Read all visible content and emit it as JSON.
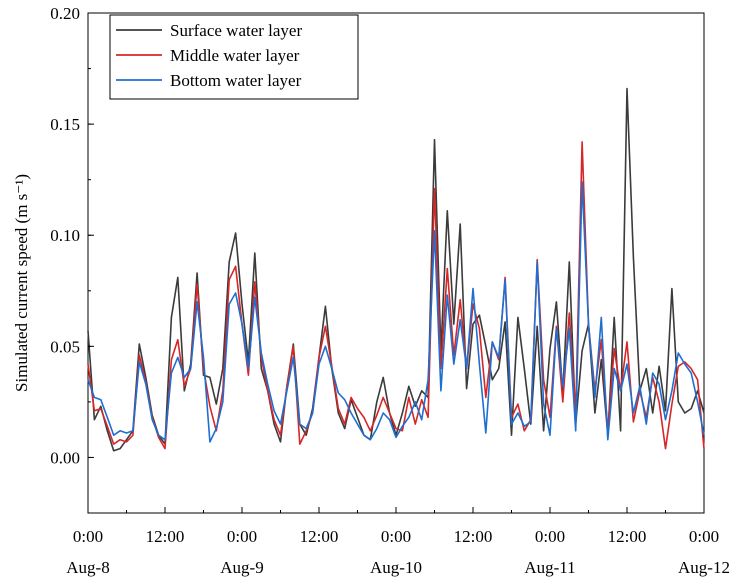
{
  "chart_data": {
    "type": "line",
    "title": "",
    "xlabel": "",
    "ylabel": "Simulated current speed (m s⁻¹)",
    "xlim": [
      0,
      96
    ],
    "ylim": [
      -0.025,
      0.2
    ],
    "yticks": [
      0.0,
      0.05,
      0.1,
      0.15,
      0.2
    ],
    "ytick_labels": [
      "0.00",
      "0.05",
      "0.10",
      "0.15",
      "0.20"
    ],
    "xticks": [
      0,
      12,
      24,
      36,
      48,
      60,
      72,
      84,
      96
    ],
    "xtick_labels": [
      "0:00",
      "12:00",
      "0:00",
      "12:00",
      "0:00",
      "12:00",
      "0:00",
      "12:00",
      "0:00"
    ],
    "xdate_labels": [
      {
        "x": 0,
        "label": "Aug-8"
      },
      {
        "x": 24,
        "label": "Aug-9"
      },
      {
        "x": 48,
        "label": "Aug-10"
      },
      {
        "x": 72,
        "label": "Aug-11"
      },
      {
        "x": 96,
        "label": "Aug-12"
      }
    ],
    "grid": false,
    "legend_position": "top-left",
    "series": [
      {
        "name": "Surface water layer",
        "color": "#3b3b3b",
        "x": [
          0,
          1,
          2,
          3,
          4,
          5,
          6,
          7,
          8,
          9,
          10,
          11,
          12,
          13,
          14,
          15,
          16,
          17,
          18,
          19,
          20,
          21,
          22,
          23,
          24,
          25,
          26,
          27,
          28,
          29,
          30,
          31,
          32,
          33,
          34,
          35,
          36,
          37,
          38,
          39,
          40,
          41,
          42,
          43,
          44,
          45,
          46,
          47,
          48,
          49,
          50,
          51,
          52,
          53,
          54,
          55,
          56,
          57,
          58,
          59,
          60,
          61,
          62,
          63,
          64,
          65,
          66,
          67,
          68,
          69,
          70,
          71,
          72,
          73,
          74,
          75,
          76,
          77,
          78,
          79,
          80,
          81,
          82,
          83,
          84,
          85,
          86,
          87,
          88,
          89,
          90,
          91,
          92,
          93,
          94,
          95,
          96
        ],
        "values": [
          0.057,
          0.017,
          0.023,
          0.012,
          0.003,
          0.004,
          0.008,
          0.012,
          0.051,
          0.036,
          0.019,
          0.01,
          0.006,
          0.063,
          0.081,
          0.03,
          0.042,
          0.083,
          0.037,
          0.036,
          0.024,
          0.04,
          0.088,
          0.101,
          0.069,
          0.043,
          0.092,
          0.04,
          0.03,
          0.015,
          0.007,
          0.032,
          0.051,
          0.015,
          0.01,
          0.022,
          0.045,
          0.068,
          0.04,
          0.02,
          0.013,
          0.026,
          0.018,
          0.01,
          0.008,
          0.025,
          0.036,
          0.02,
          0.01,
          0.02,
          0.032,
          0.023,
          0.03,
          0.027,
          0.143,
          0.048,
          0.111,
          0.06,
          0.105,
          0.031,
          0.06,
          0.064,
          0.05,
          0.035,
          0.04,
          0.061,
          0.01,
          0.063,
          0.04,
          0.015,
          0.059,
          0.012,
          0.049,
          0.07,
          0.029,
          0.088,
          0.015,
          0.048,
          0.06,
          0.02,
          0.044,
          0.01,
          0.063,
          0.012,
          0.166,
          0.09,
          0.03,
          0.04,
          0.02,
          0.041,
          0.021,
          0.076,
          0.025,
          0.02,
          0.022,
          0.03,
          0.02
        ]
      },
      {
        "name": "Middle water layer",
        "color": "#d62728",
        "x": [
          0,
          1,
          2,
          3,
          4,
          5,
          6,
          7,
          8,
          9,
          10,
          11,
          12,
          13,
          14,
          15,
          16,
          17,
          18,
          19,
          20,
          21,
          22,
          23,
          24,
          25,
          26,
          27,
          28,
          29,
          30,
          31,
          32,
          33,
          34,
          35,
          36,
          37,
          38,
          39,
          40,
          41,
          42,
          43,
          44,
          45,
          46,
          47,
          48,
          49,
          50,
          51,
          52,
          53,
          54,
          55,
          56,
          57,
          58,
          59,
          60,
          61,
          62,
          63,
          64,
          65,
          66,
          67,
          68,
          69,
          70,
          71,
          72,
          73,
          74,
          75,
          76,
          77,
          78,
          79,
          80,
          81,
          82,
          83,
          84,
          85,
          86,
          87,
          88,
          89,
          90,
          91,
          92,
          93,
          94,
          95,
          96
        ],
        "values": [
          0.042,
          0.021,
          0.022,
          0.014,
          0.006,
          0.008,
          0.007,
          0.01,
          0.046,
          0.034,
          0.018,
          0.009,
          0.004,
          0.044,
          0.053,
          0.032,
          0.04,
          0.078,
          0.04,
          0.023,
          0.012,
          0.03,
          0.08,
          0.086,
          0.06,
          0.037,
          0.079,
          0.045,
          0.03,
          0.017,
          0.01,
          0.032,
          0.05,
          0.006,
          0.012,
          0.02,
          0.045,
          0.059,
          0.041,
          0.022,
          0.015,
          0.027,
          0.022,
          0.018,
          0.012,
          0.019,
          0.027,
          0.02,
          0.013,
          0.012,
          0.027,
          0.015,
          0.026,
          0.018,
          0.121,
          0.04,
          0.085,
          0.046,
          0.071,
          0.04,
          0.069,
          0.058,
          0.027,
          0.052,
          0.044,
          0.081,
          0.018,
          0.024,
          0.012,
          0.017,
          0.089,
          0.035,
          0.018,
          0.059,
          0.025,
          0.065,
          0.019,
          0.142,
          0.06,
          0.03,
          0.053,
          0.012,
          0.049,
          0.03,
          0.052,
          0.016,
          0.03,
          0.018,
          0.036,
          0.025,
          0.004,
          0.024,
          0.041,
          0.043,
          0.04,
          0.035,
          0.004
        ]
      },
      {
        "name": "Bottom water layer",
        "color": "#1f6fd1",
        "x": [
          0,
          1,
          2,
          3,
          4,
          5,
          6,
          7,
          8,
          9,
          10,
          11,
          12,
          13,
          14,
          15,
          16,
          17,
          18,
          19,
          20,
          21,
          22,
          23,
          24,
          25,
          26,
          27,
          28,
          29,
          30,
          31,
          32,
          33,
          34,
          35,
          36,
          37,
          38,
          39,
          40,
          41,
          42,
          43,
          44,
          45,
          46,
          47,
          48,
          49,
          50,
          51,
          52,
          53,
          54,
          55,
          56,
          57,
          58,
          59,
          60,
          61,
          62,
          63,
          64,
          65,
          66,
          67,
          68,
          69,
          70,
          71,
          72,
          73,
          74,
          75,
          76,
          77,
          78,
          79,
          80,
          81,
          82,
          83,
          84,
          85,
          86,
          87,
          88,
          89,
          90,
          91,
          92,
          93,
          94,
          95,
          96
        ],
        "values": [
          0.035,
          0.027,
          0.026,
          0.018,
          0.01,
          0.012,
          0.011,
          0.012,
          0.043,
          0.033,
          0.017,
          0.01,
          0.008,
          0.038,
          0.045,
          0.036,
          0.04,
          0.07,
          0.045,
          0.007,
          0.013,
          0.025,
          0.069,
          0.074,
          0.06,
          0.04,
          0.072,
          0.047,
          0.033,
          0.021,
          0.015,
          0.03,
          0.045,
          0.015,
          0.013,
          0.02,
          0.042,
          0.05,
          0.04,
          0.029,
          0.026,
          0.02,
          0.015,
          0.01,
          0.008,
          0.013,
          0.02,
          0.017,
          0.009,
          0.014,
          0.018,
          0.025,
          0.017,
          0.035,
          0.102,
          0.03,
          0.073,
          0.042,
          0.062,
          0.04,
          0.076,
          0.042,
          0.011,
          0.052,
          0.045,
          0.08,
          0.015,
          0.02,
          0.014,
          0.016,
          0.088,
          0.024,
          0.01,
          0.058,
          0.032,
          0.058,
          0.012,
          0.124,
          0.06,
          0.027,
          0.063,
          0.008,
          0.04,
          0.03,
          0.042,
          0.02,
          0.032,
          0.015,
          0.038,
          0.033,
          0.017,
          0.03,
          0.047,
          0.042,
          0.038,
          0.025,
          0.01
        ]
      }
    ]
  }
}
